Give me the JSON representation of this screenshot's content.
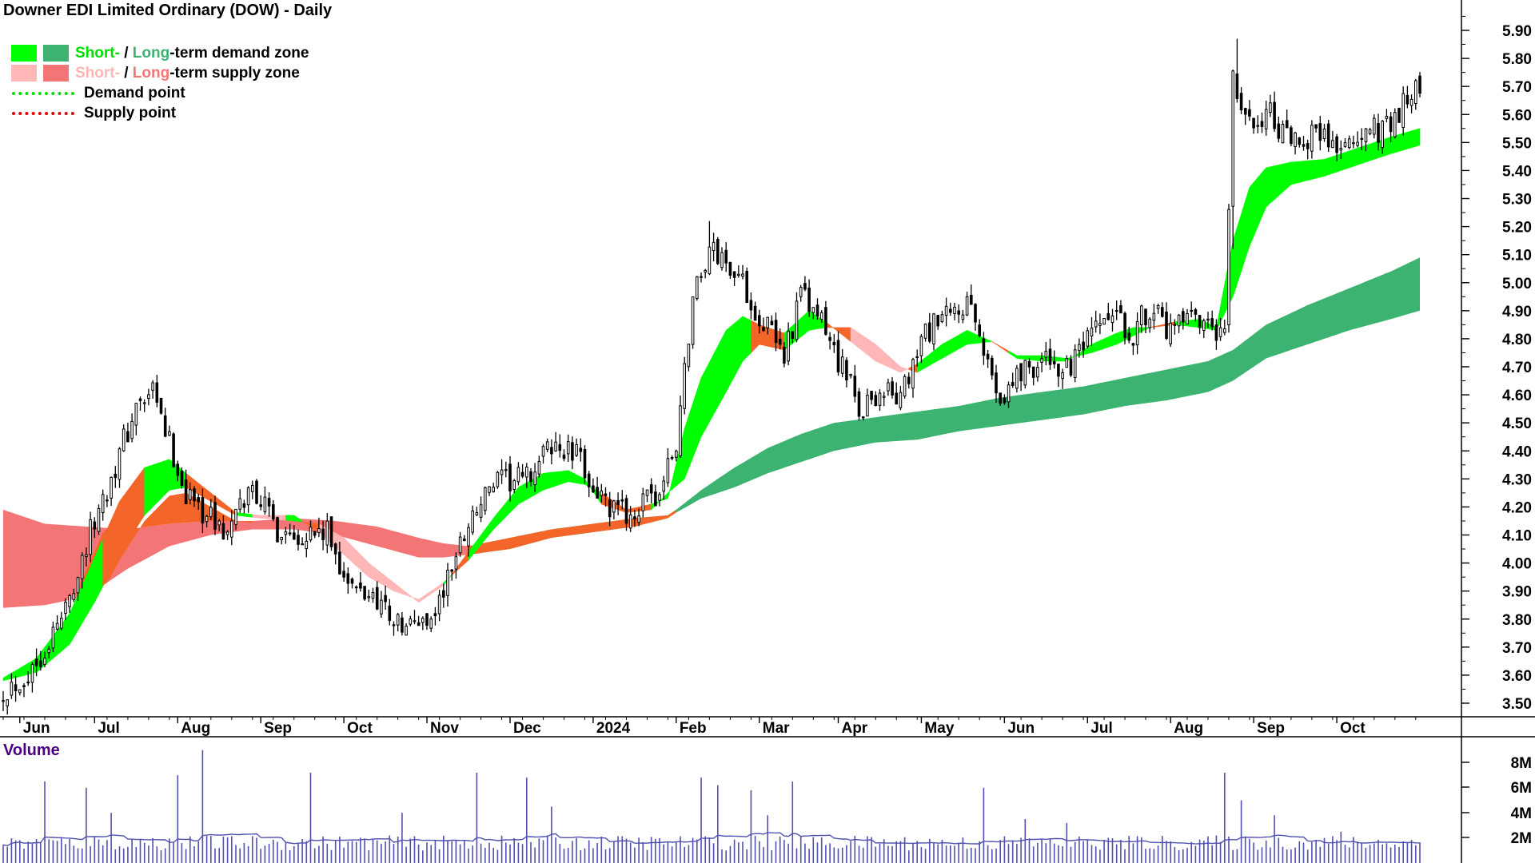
{
  "title": "Downer EDI Limited Ordinary (DOW) - Daily",
  "legend": {
    "demand": {
      "short": "Short-",
      "sep": " / ",
      "long": "Long",
      "rest": "-term demand zone"
    },
    "supply": {
      "short": "Short-",
      "sep": " / ",
      "long": "Long",
      "rest": "-term supply zone"
    },
    "demand_point": "Demand point",
    "supply_point": "Supply point"
  },
  "volume_label": "Volume",
  "colors": {
    "short_demand": "#00ff00",
    "long_demand": "#3cb371",
    "short_supply": "#ffb6b6",
    "long_supply": "#f47575",
    "short_supply_legend": "#ffb6b6",
    "long_supply_legend": "#f47575",
    "short_demand_text": "#00e000",
    "long_demand_text": "#3cb371",
    "short_supply_text": "#ffb6b6",
    "long_supply_text": "#f47575",
    "demand_point": "#00dd00",
    "supply_point": "#dd0000",
    "orange_zone": "#f4652a",
    "volume": "#5050b0",
    "volume_avg": "#5050b0"
  },
  "chart_data": {
    "type": "candlestick",
    "title": "Downer EDI Limited Ordinary (DOW) - Daily",
    "y_axis": {
      "ticks": [
        "5.90",
        "5.80",
        "5.70",
        "5.60",
        "5.50",
        "5.40",
        "5.30",
        "5.20",
        "5.10",
        "5.00",
        "4.90",
        "4.80",
        "4.70",
        "4.60",
        "4.50",
        "4.40",
        "4.30",
        "4.20",
        "4.10",
        "4.00",
        "3.90",
        "3.80",
        "3.70",
        "3.60",
        "3.50"
      ],
      "range": [
        3.46,
        5.92
      ],
      "side": "right"
    },
    "x_axis": {
      "labels": [
        "Jun",
        "Jul",
        "Aug",
        "Sep",
        "Oct",
        "Nov",
        "Dec",
        "2024",
        "Feb",
        "Mar",
        "Apr",
        "May",
        "Jun",
        "Jul",
        "Aug",
        "Sep",
        "Oct"
      ],
      "index": [
        4,
        22,
        42,
        62,
        82,
        102,
        122,
        142,
        162,
        182,
        201,
        221,
        241,
        261,
        281,
        301,
        321
      ]
    },
    "n_days": 342,
    "close_key": [
      [
        0,
        3.55
      ],
      [
        6,
        3.6
      ],
      [
        14,
        3.8
      ],
      [
        22,
        4.15
      ],
      [
        32,
        4.55
      ],
      [
        36,
        4.6
      ],
      [
        44,
        4.25
      ],
      [
        54,
        4.1
      ],
      [
        60,
        4.28
      ],
      [
        66,
        4.12
      ],
      [
        78,
        4.1
      ],
      [
        84,
        3.9
      ],
      [
        90,
        3.88
      ],
      [
        96,
        3.76
      ],
      [
        104,
        3.82
      ],
      [
        112,
        4.15
      ],
      [
        118,
        4.28
      ],
      [
        126,
        4.3
      ],
      [
        132,
        4.42
      ],
      [
        138,
        4.38
      ],
      [
        146,
        4.18
      ],
      [
        152,
        4.18
      ],
      [
        158,
        4.25
      ],
      [
        162,
        4.42
      ],
      [
        166,
        4.95
      ],
      [
        170,
        5.12
      ],
      [
        176,
        5.05
      ],
      [
        182,
        4.88
      ],
      [
        188,
        4.75
      ],
      [
        192,
        4.95
      ],
      [
        196,
        4.88
      ],
      [
        202,
        4.7
      ],
      [
        206,
        4.55
      ],
      [
        212,
        4.62
      ],
      [
        216,
        4.58
      ],
      [
        222,
        4.82
      ],
      [
        228,
        4.88
      ],
      [
        232,
        4.92
      ],
      [
        236,
        4.75
      ],
      [
        240,
        4.6
      ],
      [
        246,
        4.7
      ],
      [
        252,
        4.72
      ],
      [
        256,
        4.68
      ],
      [
        262,
        4.8
      ],
      [
        266,
        4.88
      ],
      [
        272,
        4.82
      ],
      [
        276,
        4.92
      ],
      [
        280,
        4.82
      ],
      [
        286,
        4.86
      ],
      [
        290,
        4.82
      ],
      [
        294,
        4.8
      ],
      [
        296,
        5.72
      ],
      [
        300,
        5.55
      ],
      [
        304,
        5.62
      ],
      [
        310,
        5.48
      ],
      [
        316,
        5.55
      ],
      [
        322,
        5.48
      ],
      [
        328,
        5.52
      ],
      [
        334,
        5.58
      ],
      [
        338,
        5.65
      ],
      [
        341,
        5.7
      ]
    ],
    "short_zone_key": [
      [
        0,
        3.59,
        3.58
      ],
      [
        8,
        3.66,
        3.61
      ],
      [
        16,
        3.82,
        3.71
      ],
      [
        22,
        4.02,
        3.86
      ],
      [
        28,
        4.22,
        4.03
      ],
      [
        34,
        4.34,
        4.17
      ],
      [
        40,
        4.37,
        4.26
      ],
      [
        44,
        4.32,
        4.27
      ],
      [
        50,
        4.25,
        4.22
      ],
      [
        56,
        4.18,
        4.17
      ],
      [
        62,
        4.17,
        4.16
      ],
      [
        70,
        4.17,
        4.15
      ],
      [
        76,
        4.11,
        4.14
      ],
      [
        82,
        4.03,
        4.09
      ],
      [
        88,
        3.95,
        4.0
      ],
      [
        94,
        3.9,
        3.93
      ],
      [
        100,
        3.87,
        3.86
      ],
      [
        106,
        3.93,
        3.92
      ],
      [
        112,
        4.01,
        4.04
      ],
      [
        118,
        4.12,
        4.16
      ],
      [
        124,
        4.21,
        4.27
      ],
      [
        130,
        4.26,
        4.32
      ],
      [
        136,
        4.29,
        4.33
      ],
      [
        140,
        4.28,
        4.3
      ],
      [
        144,
        4.25,
        4.21
      ],
      [
        150,
        4.19,
        4.18
      ],
      [
        156,
        4.21,
        4.19
      ],
      [
        160,
        4.23,
        4.25
      ],
      [
        164,
        4.48,
        4.3
      ],
      [
        168,
        4.66,
        4.45
      ],
      [
        174,
        4.83,
        4.61
      ],
      [
        178,
        4.88,
        4.72
      ],
      [
        182,
        4.85,
        4.78
      ],
      [
        188,
        4.82,
        4.76
      ],
      [
        194,
        4.9,
        4.83
      ],
      [
        198,
        4.86,
        4.84
      ],
      [
        204,
        4.79,
        4.84
      ],
      [
        210,
        4.72,
        4.78
      ],
      [
        216,
        4.68,
        4.7
      ],
      [
        220,
        4.71,
        4.68
      ],
      [
        226,
        4.78,
        4.73
      ],
      [
        232,
        4.83,
        4.78
      ],
      [
        238,
        4.79,
        4.79
      ],
      [
        244,
        4.73,
        4.74
      ],
      [
        250,
        4.72,
        4.74
      ],
      [
        256,
        4.72,
        4.73
      ],
      [
        262,
        4.78,
        4.75
      ],
      [
        268,
        4.82,
        4.78
      ],
      [
        272,
        4.84,
        4.81
      ],
      [
        276,
        4.84,
        4.84
      ],
      [
        282,
        4.86,
        4.85
      ],
      [
        288,
        4.87,
        4.84
      ],
      [
        292,
        4.84,
        4.83
      ],
      [
        296,
        5.15,
        4.95
      ],
      [
        300,
        5.34,
        5.13
      ],
      [
        304,
        5.41,
        5.27
      ],
      [
        310,
        5.43,
        5.35
      ],
      [
        318,
        5.44,
        5.38
      ],
      [
        326,
        5.48,
        5.42
      ],
      [
        334,
        5.52,
        5.46
      ],
      [
        341,
        5.55,
        5.49
      ]
    ],
    "long_zone_key": [
      [
        0,
        4.19,
        3.84
      ],
      [
        10,
        4.14,
        3.85
      ],
      [
        20,
        4.13,
        3.88
      ],
      [
        30,
        4.12,
        3.98
      ],
      [
        40,
        4.14,
        4.06
      ],
      [
        50,
        4.15,
        4.1
      ],
      [
        60,
        4.15,
        4.12
      ],
      [
        70,
        4.16,
        4.12
      ],
      [
        80,
        4.15,
        4.1
      ],
      [
        90,
        4.13,
        4.06
      ],
      [
        100,
        4.09,
        4.02
      ],
      [
        106,
        4.07,
        4.02
      ],
      [
        112,
        4.06,
        4.03
      ],
      [
        122,
        4.09,
        4.05
      ],
      [
        132,
        4.12,
        4.09
      ],
      [
        142,
        4.14,
        4.11
      ],
      [
        152,
        4.16,
        4.13
      ],
      [
        160,
        4.17,
        4.16
      ],
      [
        162,
        4.19,
        4.18
      ],
      [
        168,
        4.26,
        4.23
      ],
      [
        176,
        4.34,
        4.27
      ],
      [
        184,
        4.41,
        4.32
      ],
      [
        192,
        4.46,
        4.36
      ],
      [
        200,
        4.5,
        4.4
      ],
      [
        210,
        4.52,
        4.43
      ],
      [
        220,
        4.54,
        4.44
      ],
      [
        230,
        4.56,
        4.47
      ],
      [
        240,
        4.59,
        4.49
      ],
      [
        250,
        4.61,
        4.51
      ],
      [
        260,
        4.63,
        4.53
      ],
      [
        270,
        4.66,
        4.56
      ],
      [
        280,
        4.69,
        4.58
      ],
      [
        290,
        4.72,
        4.61
      ],
      [
        296,
        4.76,
        4.65
      ],
      [
        304,
        4.85,
        4.73
      ],
      [
        314,
        4.92,
        4.78
      ],
      [
        324,
        4.98,
        4.83
      ],
      [
        334,
        5.04,
        4.87
      ],
      [
        341,
        5.09,
        4.9
      ]
    ],
    "orange_short": [
      [
        24,
        34
      ],
      [
        44,
        56
      ],
      [
        72,
        76
      ],
      [
        108,
        112
      ],
      [
        144,
        156
      ],
      [
        180,
        188
      ],
      [
        198,
        204
      ],
      [
        218,
        220
      ],
      [
        238,
        242
      ],
      [
        276,
        282
      ]
    ],
    "pink_short": [
      [
        60,
        68
      ],
      [
        76,
        106
      ],
      [
        204,
        218
      ]
    ],
    "long_supply_until": 112,
    "volume_axis": {
      "ticks": [
        "8M",
        "6M",
        "4M",
        "2M"
      ]
    },
    "volume_spike_key": [
      [
        48,
        9.0
      ],
      [
        10,
        6.5
      ],
      [
        20,
        6.0
      ],
      [
        26,
        4.0
      ],
      [
        42,
        7.0
      ],
      [
        74,
        7.2
      ],
      [
        96,
        4.0
      ],
      [
        114,
        7.2
      ],
      [
        126,
        6.8
      ],
      [
        132,
        4.5
      ],
      [
        168,
        6.8
      ],
      [
        172,
        6.2
      ],
      [
        180,
        5.8
      ],
      [
        184,
        3.8
      ],
      [
        190,
        6.5
      ],
      [
        236,
        6.0
      ],
      [
        246,
        3.5
      ],
      [
        256,
        3.2
      ],
      [
        294,
        7.2
      ],
      [
        298,
        5.0
      ],
      [
        306,
        3.8
      ],
      [
        322,
        2.5
      ]
    ]
  }
}
